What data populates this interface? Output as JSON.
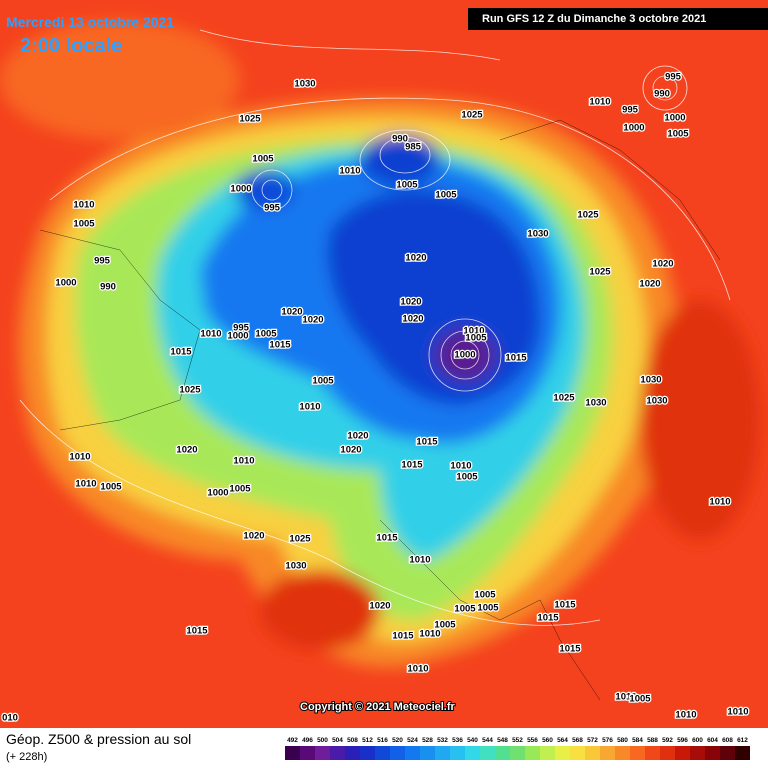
{
  "header": {
    "date": "Mercredi 13 octobre 2021",
    "time": "2:00 locale",
    "run": "Run GFS 12 Z du Dimanche 3 octobre 2021"
  },
  "copyright": "Copyright © 2021 Meteociel.fr",
  "footer": {
    "title": "Géop. Z500 & pression au sol",
    "lead": "(+ 228h)"
  },
  "legend": {
    "values": [
      492,
      496,
      500,
      504,
      508,
      512,
      516,
      520,
      524,
      528,
      532,
      536,
      540,
      544,
      548,
      552,
      556,
      560,
      564,
      568,
      572,
      576,
      580,
      584,
      588,
      592,
      596,
      600,
      604,
      608,
      612
    ],
    "colors": [
      "#3a0050",
      "#5a0a78",
      "#6e1e9a",
      "#4a1aa8",
      "#2a20b8",
      "#1830c8",
      "#1048d8",
      "#1060e8",
      "#1478f0",
      "#1890f0",
      "#20a8f0",
      "#28c0f0",
      "#30d8e8",
      "#40e0c0",
      "#50e090",
      "#70e070",
      "#98e858",
      "#c0f050",
      "#e8f048",
      "#f8e040",
      "#f8c838",
      "#f8a830",
      "#f88828",
      "#f86820",
      "#f04818",
      "#e03010",
      "#c81808",
      "#a80c08",
      "#880408",
      "#600008",
      "#300000"
    ]
  },
  "isobars": [
    "1030",
    "1025",
    "1025",
    "1005",
    "1000",
    "995",
    "990",
    "985",
    "1010",
    "1005",
    "1005",
    "1010",
    "1005",
    "995",
    "990",
    "1000",
    "1020",
    "1030",
    "1025",
    "1025",
    "1020",
    "1020",
    "1020",
    "1020",
    "1020",
    "1020",
    "1010",
    "995",
    "1000",
    "1005",
    "1015",
    "1015",
    "1010",
    "1005",
    "1000",
    "1015",
    "1005",
    "1025",
    "1010",
    "1025",
    "1030",
    "1030",
    "1030",
    "1020",
    "1020",
    "1015",
    "1020",
    "1010",
    "1015",
    "1010",
    "1005",
    "1010",
    "1010",
    "1005",
    "1000",
    "1005",
    "1010",
    "1020",
    "1025",
    "1015",
    "1030",
    "1010",
    "1005",
    "1005",
    "1005",
    "1015",
    "1005",
    "1020",
    "1015",
    "1015",
    "1010",
    "1015",
    "1015",
    "1010",
    "1010",
    "1005",
    "1010",
    "1010",
    "010",
    "1010",
    "995",
    "1000",
    "1000",
    "1005",
    "995",
    "990"
  ]
}
